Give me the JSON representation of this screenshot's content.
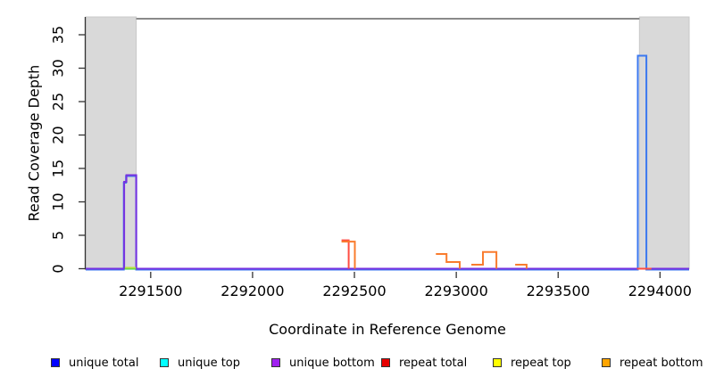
{
  "chart_data": {
    "type": "line",
    "subtype": "step-coverage-plot",
    "title": "",
    "xlabel": "Coordinate in Reference Genome",
    "ylabel": "Read Coverage Depth",
    "xlim": [
      2291181,
      2294143
    ],
    "ylim": [
      0,
      37.7
    ],
    "x_ticks": [
      2291500,
      2292000,
      2292500,
      2293000,
      2293500,
      2294000
    ],
    "y_ticks": [
      0,
      5,
      10,
      15,
      20,
      25,
      30,
      35
    ],
    "grid": false,
    "background_color": "#ffffff",
    "shaded_regions": [
      {
        "name": "masked-left",
        "x0": 2291181,
        "x1": 2291429,
        "fill": "#d9d9d9",
        "stroke": "#c9c9c9"
      },
      {
        "name": "masked-right",
        "x0": 2293899,
        "x1": 2294143,
        "fill": "#d9d9d9",
        "stroke": "#c9c9c9"
      }
    ],
    "top_line": {
      "x0": 2291429,
      "x1": 2293899,
      "color": "#7a7a7a"
    },
    "series": [
      {
        "name": "unique total",
        "color": "#3b78f0",
        "dy": 1,
        "segments": [
          [
            [
              2291181,
              0
            ],
            [
              2291368,
              13
            ],
            [
              2291379,
              14
            ],
            [
              2291429,
              0
            ],
            [
              2293891,
              32
            ],
            [
              2293933,
              0
            ],
            [
              2294143,
              0
            ]
          ]
        ]
      },
      {
        "name": "unique bottom",
        "color": "#7733e0",
        "dy": 0,
        "segments": [
          [
            [
              2291181,
              0
            ],
            [
              2291370,
              13
            ],
            [
              2291381,
              14
            ],
            [
              2291429,
              0
            ],
            [
              2294143,
              0
            ]
          ]
        ]
      },
      {
        "name": "unique top",
        "color": "#2ec84e",
        "dy": 0,
        "segments": [
          [
            [
              2291372,
              0
            ],
            [
              2291428,
              0
            ]
          ]
        ]
      },
      {
        "name": "repeat top",
        "color": "#b8e23c",
        "dy": -1,
        "segments": [
          [
            [
              2291374,
              0
            ],
            [
              2291427,
              0
            ]
          ]
        ]
      },
      {
        "name": "repeat total",
        "color": "#ff4d42",
        "dy": 0,
        "segments": [
          [
            [
              2292437,
              4.25
            ],
            [
              2292472,
              0
            ]
          ],
          [
            [
              2293887,
              0
            ],
            [
              2293958,
              0
            ]
          ]
        ]
      },
      {
        "name": "repeat bottom",
        "color": "#f97c2e",
        "dy": 0,
        "segments": [
          [
            [
              2292437,
              4.05
            ],
            [
              2292502,
              0
            ]
          ],
          [
            [
              2292900,
              2.2
            ],
            [
              2292952,
              1.0
            ],
            [
              2293017,
              0
            ]
          ],
          [
            [
              2293074,
              0.6
            ],
            [
              2293131,
              2.5
            ],
            [
              2293197,
              0
            ]
          ],
          [
            [
              2293289,
              0.6
            ],
            [
              2293345,
              0
            ]
          ]
        ]
      }
    ],
    "axis_color": "#333333",
    "tick_label_color": "#000000"
  },
  "legend": {
    "items": [
      {
        "label": "unique total",
        "color": "#0000ff"
      },
      {
        "label": "unique top",
        "color": "#00ffff"
      },
      {
        "label": "unique bottom",
        "color": "#a020f0"
      },
      {
        "label": "repeat total",
        "color": "#e60000"
      },
      {
        "label": "repeat top",
        "color": "#ffff00"
      },
      {
        "label": "repeat bottom",
        "color": "#ffa500"
      }
    ]
  }
}
